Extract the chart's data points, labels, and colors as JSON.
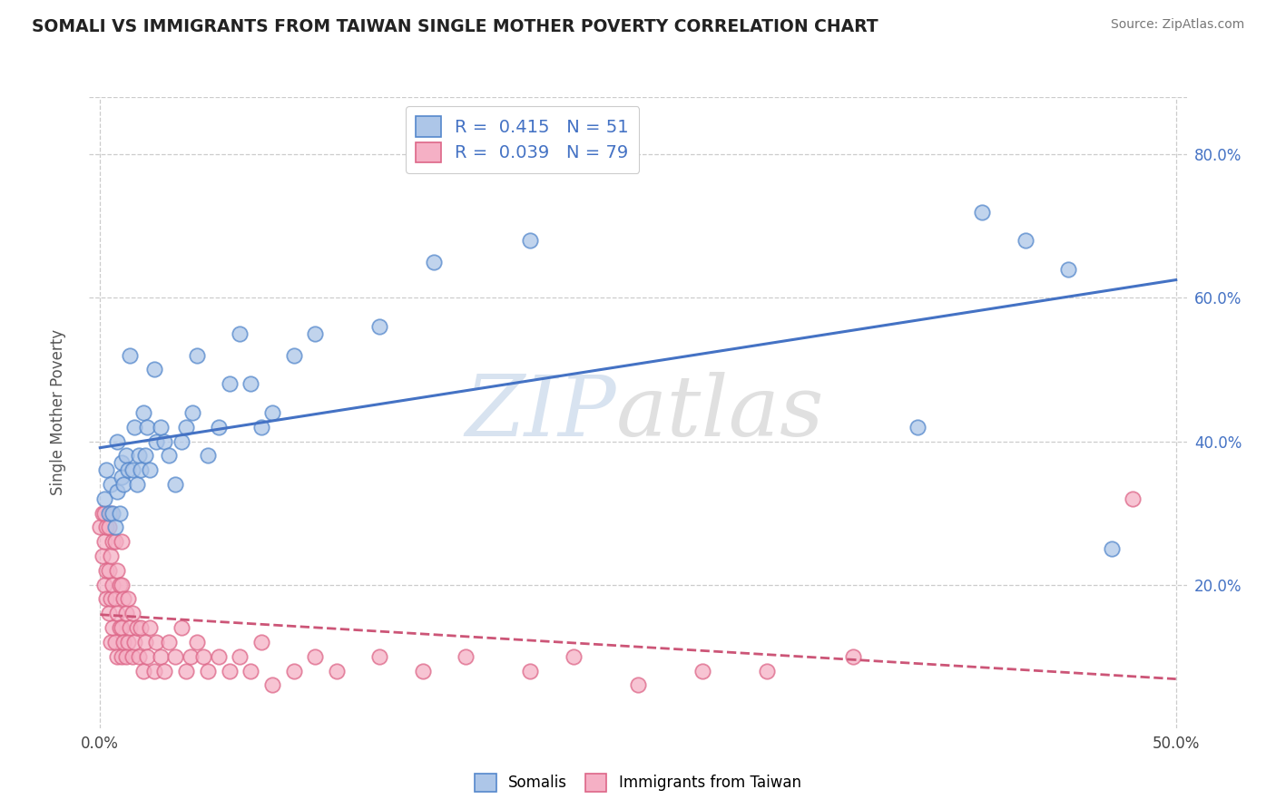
{
  "title": "SOMALI VS IMMIGRANTS FROM TAIWAN SINGLE MOTHER POVERTY CORRELATION CHART",
  "source": "Source: ZipAtlas.com",
  "ylabel": "Single Mother Poverty",
  "xlim": [
    -0.005,
    0.505
  ],
  "ylim": [
    0.0,
    0.88
  ],
  "xtick_positions": [
    0.0,
    0.1,
    0.2,
    0.3,
    0.4,
    0.5
  ],
  "xtick_labels_show": [
    "0.0%",
    "",
    "",
    "",
    "",
    "50.0%"
  ],
  "ytick_positions": [
    0.2,
    0.4,
    0.6,
    0.8
  ],
  "ytick_labels": [
    "20.0%",
    "40.0%",
    "60.0%",
    "80.0%"
  ],
  "somali_R": 0.415,
  "somali_N": 51,
  "taiwan_R": 0.039,
  "taiwan_N": 79,
  "somali_color": "#adc6e8",
  "somali_edge_color": "#5588cc",
  "taiwan_color": "#f5b0c5",
  "taiwan_edge_color": "#dd6688",
  "somali_line_color": "#4472c4",
  "taiwan_line_color": "#cc5577",
  "legend_label_somali": "Somalis",
  "legend_label_taiwan": "Immigrants from Taiwan",
  "background_color": "#ffffff",
  "grid_color": "#cccccc",
  "title_color": "#222222",
  "source_color": "#777777",
  "somali_x": [
    0.002,
    0.003,
    0.004,
    0.005,
    0.006,
    0.007,
    0.008,
    0.008,
    0.009,
    0.01,
    0.01,
    0.011,
    0.012,
    0.013,
    0.014,
    0.015,
    0.016,
    0.017,
    0.018,
    0.019,
    0.02,
    0.021,
    0.022,
    0.023,
    0.025,
    0.026,
    0.028,
    0.03,
    0.032,
    0.035,
    0.038,
    0.04,
    0.043,
    0.045,
    0.05,
    0.055,
    0.06,
    0.065,
    0.07,
    0.075,
    0.08,
    0.09,
    0.1,
    0.13,
    0.155,
    0.2,
    0.38,
    0.41,
    0.43,
    0.45,
    0.47
  ],
  "somali_y": [
    0.32,
    0.36,
    0.3,
    0.34,
    0.3,
    0.28,
    0.33,
    0.4,
    0.3,
    0.35,
    0.37,
    0.34,
    0.38,
    0.36,
    0.52,
    0.36,
    0.42,
    0.34,
    0.38,
    0.36,
    0.44,
    0.38,
    0.42,
    0.36,
    0.5,
    0.4,
    0.42,
    0.4,
    0.38,
    0.34,
    0.4,
    0.42,
    0.44,
    0.52,
    0.38,
    0.42,
    0.48,
    0.55,
    0.48,
    0.42,
    0.44,
    0.52,
    0.55,
    0.56,
    0.65,
    0.68,
    0.42,
    0.72,
    0.68,
    0.64,
    0.25
  ],
  "taiwan_x": [
    0.0,
    0.001,
    0.001,
    0.002,
    0.002,
    0.002,
    0.003,
    0.003,
    0.003,
    0.004,
    0.004,
    0.004,
    0.005,
    0.005,
    0.005,
    0.005,
    0.006,
    0.006,
    0.006,
    0.007,
    0.007,
    0.007,
    0.008,
    0.008,
    0.008,
    0.009,
    0.009,
    0.01,
    0.01,
    0.01,
    0.01,
    0.011,
    0.011,
    0.012,
    0.012,
    0.013,
    0.013,
    0.014,
    0.015,
    0.015,
    0.016,
    0.017,
    0.018,
    0.019,
    0.02,
    0.021,
    0.022,
    0.023,
    0.025,
    0.026,
    0.028,
    0.03,
    0.032,
    0.035,
    0.038,
    0.04,
    0.042,
    0.045,
    0.048,
    0.05,
    0.055,
    0.06,
    0.065,
    0.07,
    0.075,
    0.08,
    0.09,
    0.1,
    0.11,
    0.13,
    0.15,
    0.17,
    0.2,
    0.22,
    0.25,
    0.28,
    0.31,
    0.35,
    0.48
  ],
  "taiwan_y": [
    0.28,
    0.3,
    0.24,
    0.2,
    0.26,
    0.3,
    0.18,
    0.22,
    0.28,
    0.16,
    0.22,
    0.28,
    0.12,
    0.18,
    0.24,
    0.3,
    0.14,
    0.2,
    0.26,
    0.12,
    0.18,
    0.26,
    0.1,
    0.16,
    0.22,
    0.14,
    0.2,
    0.1,
    0.14,
    0.2,
    0.26,
    0.12,
    0.18,
    0.1,
    0.16,
    0.12,
    0.18,
    0.14,
    0.1,
    0.16,
    0.12,
    0.14,
    0.1,
    0.14,
    0.08,
    0.12,
    0.1,
    0.14,
    0.08,
    0.12,
    0.1,
    0.08,
    0.12,
    0.1,
    0.14,
    0.08,
    0.1,
    0.12,
    0.1,
    0.08,
    0.1,
    0.08,
    0.1,
    0.08,
    0.12,
    0.06,
    0.08,
    0.1,
    0.08,
    0.1,
    0.08,
    0.1,
    0.08,
    0.1,
    0.06,
    0.08,
    0.08,
    0.1,
    0.32
  ]
}
